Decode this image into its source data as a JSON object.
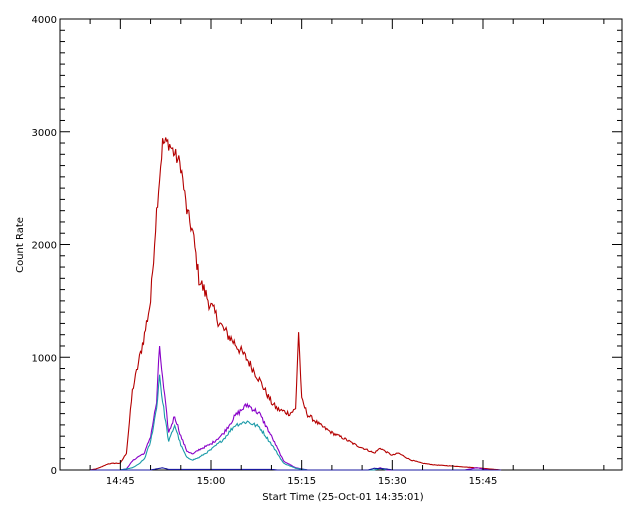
{
  "chart_data": {
    "type": "line",
    "title": "",
    "xlabel": "Start Time (25-Oct-01 14:35:01)",
    "ylabel": "Count Rate",
    "x_unit": "time (HH:MM, 25-Oct-01)",
    "xlim": [
      "14:35:01",
      "16:08:00"
    ],
    "ylim": [
      0,
      4000
    ],
    "xticks": [
      "14:45",
      "15:00",
      "15:15",
      "15:30",
      "15:45"
    ],
    "yticks": [
      0,
      1000,
      2000,
      3000,
      4000
    ],
    "grid": false,
    "legend": "none",
    "series": [
      {
        "color": "#b40000",
        "points": [
          [
            "14:40",
            0
          ],
          [
            "14:41",
            10
          ],
          [
            "14:42",
            30
          ],
          [
            "14:43",
            55
          ],
          [
            "14:44",
            60
          ],
          [
            "14:45",
            60
          ],
          [
            "14:46",
            150
          ],
          [
            "14:47",
            700
          ],
          [
            "14:48",
            950
          ],
          [
            "14:49",
            1200
          ],
          [
            "14:50",
            1500
          ],
          [
            "14:51",
            2300
          ],
          [
            "14:52",
            2900
          ],
          [
            "14:53",
            2900
          ],
          [
            "14:54",
            2800
          ],
          [
            "14:55",
            2700
          ],
          [
            "14:56",
            2300
          ],
          [
            "14:57",
            2100
          ],
          [
            "14:58",
            1700
          ],
          [
            "15:00",
            1450
          ],
          [
            "15:02",
            1250
          ],
          [
            "15:04",
            1120
          ],
          [
            "15:06",
            980
          ],
          [
            "15:08",
            800
          ],
          [
            "15:10",
            600
          ],
          [
            "15:11",
            540
          ],
          [
            "15:12",
            520
          ],
          [
            "15:13",
            500
          ],
          [
            "15:14",
            540
          ],
          [
            "15:14:30",
            1230
          ],
          [
            "15:15",
            620
          ],
          [
            "15:16",
            490
          ],
          [
            "15:18",
            400
          ],
          [
            "15:20",
            330
          ],
          [
            "15:22",
            280
          ],
          [
            "15:24",
            220
          ],
          [
            "15:26",
            175
          ],
          [
            "15:27",
            150
          ],
          [
            "15:28",
            195
          ],
          [
            "15:29",
            160
          ],
          [
            "15:30",
            130
          ],
          [
            "15:31",
            150
          ],
          [
            "15:33",
            90
          ],
          [
            "15:35",
            60
          ],
          [
            "15:37",
            45
          ],
          [
            "15:40",
            35
          ],
          [
            "15:45",
            15
          ],
          [
            "15:48",
            0
          ]
        ]
      },
      {
        "color": "#8800c8",
        "points": [
          [
            "14:45",
            0
          ],
          [
            "14:46",
            10
          ],
          [
            "14:47",
            80
          ],
          [
            "14:48",
            120
          ],
          [
            "14:49",
            150
          ],
          [
            "14:50",
            300
          ],
          [
            "14:51",
            600
          ],
          [
            "14:51:30",
            1100
          ],
          [
            "14:52",
            800
          ],
          [
            "14:53",
            330
          ],
          [
            "14:54",
            480
          ],
          [
            "14:55",
            300
          ],
          [
            "14:56",
            170
          ],
          [
            "14:57",
            140
          ],
          [
            "14:58",
            180
          ],
          [
            "15:00",
            230
          ],
          [
            "15:02",
            320
          ],
          [
            "15:04",
            480
          ],
          [
            "15:06",
            580
          ],
          [
            "15:08",
            500
          ],
          [
            "15:10",
            300
          ],
          [
            "15:12",
            80
          ],
          [
            "15:14",
            20
          ],
          [
            "15:16",
            0
          ],
          [
            "15:27",
            0
          ],
          [
            "15:28",
            20
          ],
          [
            "15:29",
            0
          ],
          [
            "15:42",
            0
          ],
          [
            "15:44",
            20
          ],
          [
            "15:46",
            0
          ]
        ]
      },
      {
        "color": "#1a9aa8",
        "points": [
          [
            "14:45",
            0
          ],
          [
            "14:47",
            20
          ],
          [
            "14:48",
            50
          ],
          [
            "14:49",
            100
          ],
          [
            "14:50",
            250
          ],
          [
            "14:51",
            550
          ],
          [
            "14:51:30",
            850
          ],
          [
            "14:52",
            600
          ],
          [
            "14:53",
            250
          ],
          [
            "14:54",
            400
          ],
          [
            "14:55",
            220
          ],
          [
            "14:56",
            110
          ],
          [
            "14:57",
            90
          ],
          [
            "14:58",
            110
          ],
          [
            "15:00",
            180
          ],
          [
            "15:02",
            270
          ],
          [
            "15:04",
            400
          ],
          [
            "15:06",
            430
          ],
          [
            "15:08",
            380
          ],
          [
            "15:10",
            230
          ],
          [
            "15:12",
            60
          ],
          [
            "15:14",
            15
          ],
          [
            "15:16",
            0
          ],
          [
            "15:27",
            0
          ],
          [
            "15:28",
            15
          ],
          [
            "15:29",
            0
          ]
        ]
      },
      {
        "color": "#1a1aa0",
        "points": [
          [
            "14:40",
            0
          ],
          [
            "14:50",
            0
          ],
          [
            "14:51",
            10
          ],
          [
            "14:52",
            20
          ],
          [
            "14:53",
            5
          ],
          [
            "15:10",
            5
          ],
          [
            "15:11",
            0
          ],
          [
            "15:26",
            0
          ],
          [
            "15:27",
            15
          ],
          [
            "15:29",
            10
          ],
          [
            "15:30",
            0
          ],
          [
            "15:48",
            0
          ]
        ]
      }
    ]
  }
}
